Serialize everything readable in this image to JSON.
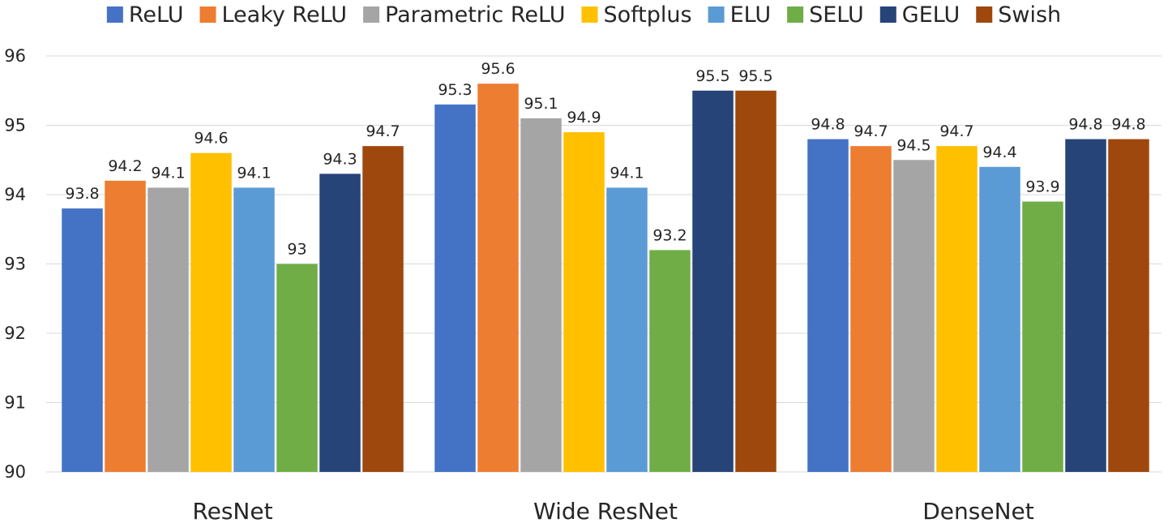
{
  "chart_data": {
    "type": "bar",
    "title": "",
    "xlabel": "",
    "ylabel": "",
    "categories": [
      "ResNet",
      "Wide ResNet",
      "DenseNet"
    ],
    "ylim": [
      90,
      96
    ],
    "yticks": [
      90,
      91,
      92,
      93,
      94,
      95,
      96
    ],
    "grid": true,
    "legend_position": "top",
    "series": [
      {
        "name": "ReLU",
        "color": "#4472C4",
        "values": [
          93.8,
          95.3,
          94.8
        ],
        "labels": [
          "93.8",
          "95.3",
          "94.8"
        ]
      },
      {
        "name": "Leaky ReLU",
        "color": "#ED7D31",
        "values": [
          94.2,
          95.6,
          94.7
        ],
        "labels": [
          "94.2",
          "95.6",
          "94.7"
        ]
      },
      {
        "name": "Parametric ReLU",
        "color": "#A5A5A5",
        "values": [
          94.1,
          95.1,
          94.5
        ],
        "labels": [
          "94.1",
          "95.1",
          "94.5"
        ]
      },
      {
        "name": "Softplus",
        "color": "#FFC000",
        "values": [
          94.6,
          94.9,
          94.7
        ],
        "labels": [
          "94.6",
          "94.9",
          "94.7"
        ]
      },
      {
        "name": "ELU",
        "color": "#5B9BD5",
        "values": [
          94.1,
          94.1,
          94.4
        ],
        "labels": [
          "94.1",
          "94.1",
          "94.4"
        ]
      },
      {
        "name": "SELU",
        "color": "#70AD47",
        "values": [
          93.0,
          93.2,
          93.9
        ],
        "labels": [
          "93",
          "93.2",
          "93.9"
        ]
      },
      {
        "name": "GELU",
        "color": "#264478",
        "values": [
          94.3,
          95.5,
          94.8
        ],
        "labels": [
          "94.3",
          "95.5",
          "94.8"
        ]
      },
      {
        "name": "Swish",
        "color": "#9E480E",
        "values": [
          94.7,
          95.5,
          94.8
        ],
        "labels": [
          "94.7",
          "95.5",
          "94.8"
        ]
      }
    ]
  }
}
